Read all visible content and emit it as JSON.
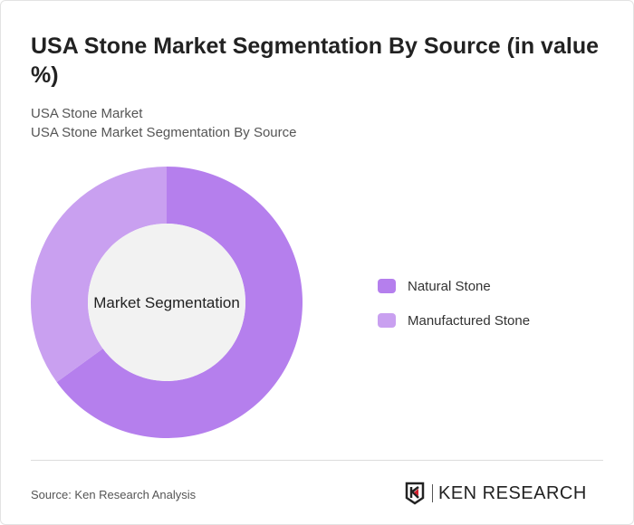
{
  "title": "USA Stone Market Segmentation By Source (in value %)",
  "subtitle1": "USA Stone Market",
  "subtitle2": "USA Stone Market Segmentation By Source",
  "chart_data": {
    "type": "pie",
    "donut": true,
    "center_label": "Market Segmentation",
    "categories": [
      "Natural Stone",
      "Manufactured Stone"
    ],
    "values": [
      65,
      35
    ],
    "colors": [
      "#b57fed",
      "#c9a0f0"
    ],
    "legend_position": "right"
  },
  "source": "Source: Ken Research Analysis",
  "logo": "KEN RESEARCH"
}
